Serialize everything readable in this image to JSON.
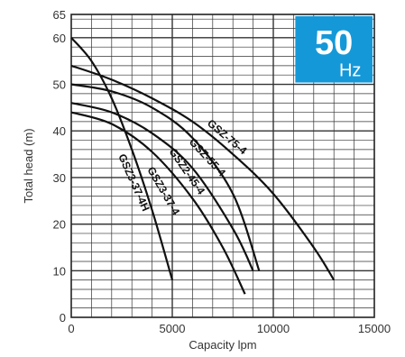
{
  "chart_data": {
    "type": "line",
    "xlabel": "Capacity lpm",
    "ylabel": "Total head (m)",
    "xlim": [
      0,
      15000
    ],
    "ylim": [
      0,
      65
    ],
    "x_ticks": [
      "0",
      "5000",
      "10000",
      "15000"
    ],
    "y_ticks": [
      "0",
      "10",
      "20",
      "30",
      "40",
      "50",
      "60",
      "65"
    ],
    "grid": true,
    "badge": {
      "value": "50",
      "unit": "Hz",
      "color": "#1598d8"
    },
    "series": [
      {
        "name": "GSZ3-37-4H",
        "color": "#111111",
        "x": [
          0,
          1000,
          2000,
          3000,
          4000,
          5000
        ],
        "y": [
          60,
          55,
          47,
          36,
          23,
          8
        ]
      },
      {
        "name": "GSZ3-37-4",
        "color": "#111111",
        "x": [
          0,
          2000,
          4000,
          6000,
          7500,
          8600
        ],
        "y": [
          44,
          41.5,
          35.5,
          25.5,
          15,
          5
        ]
      },
      {
        "name": "GSZ2-45-4",
        "color": "#111111",
        "x": [
          0,
          2000,
          4000,
          6000,
          8000,
          9000
        ],
        "y": [
          46,
          44,
          39.5,
          32,
          19,
          10
        ]
      },
      {
        "name": "GSZ-55-4",
        "color": "#111111",
        "x": [
          0,
          2000,
          4000,
          6000,
          8000,
          9300
        ],
        "y": [
          50,
          48.5,
          45,
          38.5,
          26.5,
          10
        ]
      },
      {
        "name": "GSZ-75-4",
        "color": "#111111",
        "x": [
          0,
          2000,
          4000,
          6000,
          8000,
          10000,
          12000,
          13000
        ],
        "y": [
          54,
          51,
          47,
          42,
          35,
          26.5,
          15,
          8
        ]
      }
    ]
  }
}
